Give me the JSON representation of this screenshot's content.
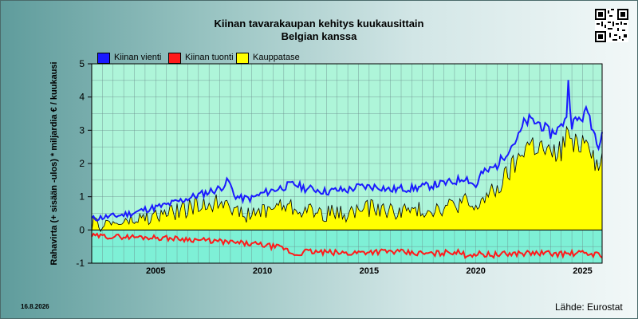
{
  "header": {
    "title_line1": "Kiinan tavarakaupan kehitys kuukausittain",
    "title_line2": "Belgian kanssa"
  },
  "footer": {
    "date": "16.8.2026",
    "source": "Lähde: Eurostat"
  },
  "colors": {
    "export": "#1a1aff",
    "import": "#ff1a1a",
    "balance": "#ffff00",
    "plot_positive": "#aef5d9",
    "plot_negative": "#7ef0d6"
  },
  "chart_data": {
    "type": "area",
    "title": "Kiinan tavarakaupan kehitys kuukausittain Belgian kanssa",
    "ylabel": "Rahavirta (+ sisään -ulos)  * miljardia € / kuukausi",
    "xlabel": "",
    "ylim": [
      -1,
      5
    ],
    "yticks": [
      -1,
      0,
      1,
      2,
      3,
      4,
      5
    ],
    "xticks": [
      "2005",
      "2010",
      "2015",
      "2020",
      "2025"
    ],
    "grid": true,
    "legend_position": "top-left",
    "legend": [
      "Kiinan vienti",
      "Kiinan tuonti",
      "Kauppatase"
    ],
    "x_start": "2002-01",
    "x_end": "2025-12",
    "series": [
      {
        "name": "Kiinan vienti",
        "type": "line",
        "points": [
          [
            "2002-01",
            0.33
          ],
          [
            "2002-07",
            0.38
          ],
          [
            "2003-01",
            0.41
          ],
          [
            "2003-07",
            0.46
          ],
          [
            "2004-01",
            0.52
          ],
          [
            "2004-07",
            0.62
          ],
          [
            "2005-01",
            0.68
          ],
          [
            "2005-07",
            0.75
          ],
          [
            "2006-01",
            0.85
          ],
          [
            "2006-07",
            0.95
          ],
          [
            "2007-01",
            1.05
          ],
          [
            "2007-07",
            1.15
          ],
          [
            "2008-01",
            1.25
          ],
          [
            "2008-06",
            1.48
          ],
          [
            "2008-09",
            1.05
          ],
          [
            "2009-01",
            0.95
          ],
          [
            "2009-07",
            0.95
          ],
          [
            "2010-01",
            1.1
          ],
          [
            "2010-07",
            1.2
          ],
          [
            "2011-01",
            1.3
          ],
          [
            "2011-07",
            1.38
          ],
          [
            "2012-01",
            1.25
          ],
          [
            "2012-07",
            1.22
          ],
          [
            "2013-01",
            1.15
          ],
          [
            "2013-07",
            1.2
          ],
          [
            "2014-01",
            1.2
          ],
          [
            "2014-07",
            1.3
          ],
          [
            "2015-01",
            1.3
          ],
          [
            "2015-07",
            1.3
          ],
          [
            "2016-01",
            1.2
          ],
          [
            "2016-07",
            1.25
          ],
          [
            "2017-01",
            1.25
          ],
          [
            "2017-07",
            1.3
          ],
          [
            "2018-01",
            1.35
          ],
          [
            "2018-07",
            1.4
          ],
          [
            "2019-01",
            1.45
          ],
          [
            "2019-07",
            1.6
          ],
          [
            "2020-01",
            1.3
          ],
          [
            "2020-04",
            1.7
          ],
          [
            "2020-07",
            1.75
          ],
          [
            "2021-01",
            1.95
          ],
          [
            "2021-07",
            2.4
          ],
          [
            "2022-01",
            2.8
          ],
          [
            "2022-04",
            3.2
          ],
          [
            "2022-07",
            3.3
          ],
          [
            "2023-01",
            3.2
          ],
          [
            "2023-07",
            2.9
          ],
          [
            "2024-01",
            3.1
          ],
          [
            "2024-04",
            3.5
          ],
          [
            "2024-05",
            4.4
          ],
          [
            "2024-07",
            3.2
          ],
          [
            "2025-01",
            3.4
          ],
          [
            "2025-04",
            3.6
          ],
          [
            "2025-07",
            3.0
          ],
          [
            "2025-10",
            2.6
          ],
          [
            "2025-12",
            3.0
          ]
        ]
      },
      {
        "name": "Kiinan tuonti",
        "type": "line",
        "points": [
          [
            "2002-01",
            -0.18
          ],
          [
            "2003-01",
            -0.2
          ],
          [
            "2004-01",
            -0.21
          ],
          [
            "2005-01",
            -0.23
          ],
          [
            "2006-01",
            -0.26
          ],
          [
            "2007-01",
            -0.3
          ],
          [
            "2008-01",
            -0.35
          ],
          [
            "2009-01",
            -0.4
          ],
          [
            "2010-01",
            -0.45
          ],
          [
            "2011-01",
            -0.55
          ],
          [
            "2011-07",
            -0.75
          ],
          [
            "2012-01",
            -0.65
          ],
          [
            "2013-01",
            -0.68
          ],
          [
            "2014-01",
            -0.7
          ],
          [
            "2015-01",
            -0.65
          ],
          [
            "2016-01",
            -0.65
          ],
          [
            "2017-01",
            -0.7
          ],
          [
            "2018-01",
            -0.72
          ],
          [
            "2019-01",
            -0.65
          ],
          [
            "2019-07",
            -0.75
          ],
          [
            "2020-01",
            -0.72
          ],
          [
            "2021-01",
            -0.75
          ],
          [
            "2022-01",
            -0.7
          ],
          [
            "2023-01",
            -0.7
          ],
          [
            "2024-01",
            -0.72
          ],
          [
            "2025-01",
            -0.7
          ],
          [
            "2025-12",
            -0.75
          ]
        ]
      },
      {
        "name": "Kauppatase",
        "type": "area",
        "points": [
          [
            "2002-01",
            0.15
          ],
          [
            "2002-07",
            0.18
          ],
          [
            "2003-01",
            0.2
          ],
          [
            "2003-07",
            0.22
          ],
          [
            "2004-01",
            0.28
          ],
          [
            "2004-07",
            0.35
          ],
          [
            "2005-01",
            0.4
          ],
          [
            "2005-07",
            0.5
          ],
          [
            "2006-01",
            0.55
          ],
          [
            "2006-07",
            0.65
          ],
          [
            "2007-01",
            0.7
          ],
          [
            "2007-07",
            0.8
          ],
          [
            "2008-01",
            0.85
          ],
          [
            "2008-06",
            1.0
          ],
          [
            "2008-09",
            0.55
          ],
          [
            "2009-01",
            0.45
          ],
          [
            "2009-07",
            0.45
          ],
          [
            "2010-01",
            0.6
          ],
          [
            "2010-07",
            0.7
          ],
          [
            "2011-01",
            0.75
          ],
          [
            "2011-07",
            0.65
          ],
          [
            "2012-01",
            0.6
          ],
          [
            "2012-07",
            0.55
          ],
          [
            "2013-01",
            0.5
          ],
          [
            "2013-07",
            0.5
          ],
          [
            "2014-01",
            0.5
          ],
          [
            "2014-07",
            0.6
          ],
          [
            "2015-01",
            0.65
          ],
          [
            "2015-07",
            0.65
          ],
          [
            "2016-01",
            0.55
          ],
          [
            "2016-07",
            0.6
          ],
          [
            "2017-01",
            0.55
          ],
          [
            "2017-07",
            0.6
          ],
          [
            "2018-01",
            0.65
          ],
          [
            "2018-07",
            0.7
          ],
          [
            "2019-01",
            0.75
          ],
          [
            "2019-07",
            0.85
          ],
          [
            "2020-01",
            0.55
          ],
          [
            "2020-04",
            0.95
          ],
          [
            "2020-07",
            1.0
          ],
          [
            "2021-01",
            1.2
          ],
          [
            "2021-07",
            1.7
          ],
          [
            "2022-01",
            2.1
          ],
          [
            "2022-04",
            2.5
          ],
          [
            "2022-07",
            2.6
          ],
          [
            "2023-01",
            2.5
          ],
          [
            "2023-07",
            2.2
          ],
          [
            "2024-01",
            2.4
          ],
          [
            "2024-04",
            2.8
          ],
          [
            "2024-05",
            3.1
          ],
          [
            "2024-07",
            2.4
          ],
          [
            "2025-01",
            2.7
          ],
          [
            "2025-04",
            2.9
          ],
          [
            "2025-07",
            2.3
          ],
          [
            "2025-10",
            1.8
          ],
          [
            "2025-12",
            2.2
          ]
        ]
      }
    ]
  }
}
